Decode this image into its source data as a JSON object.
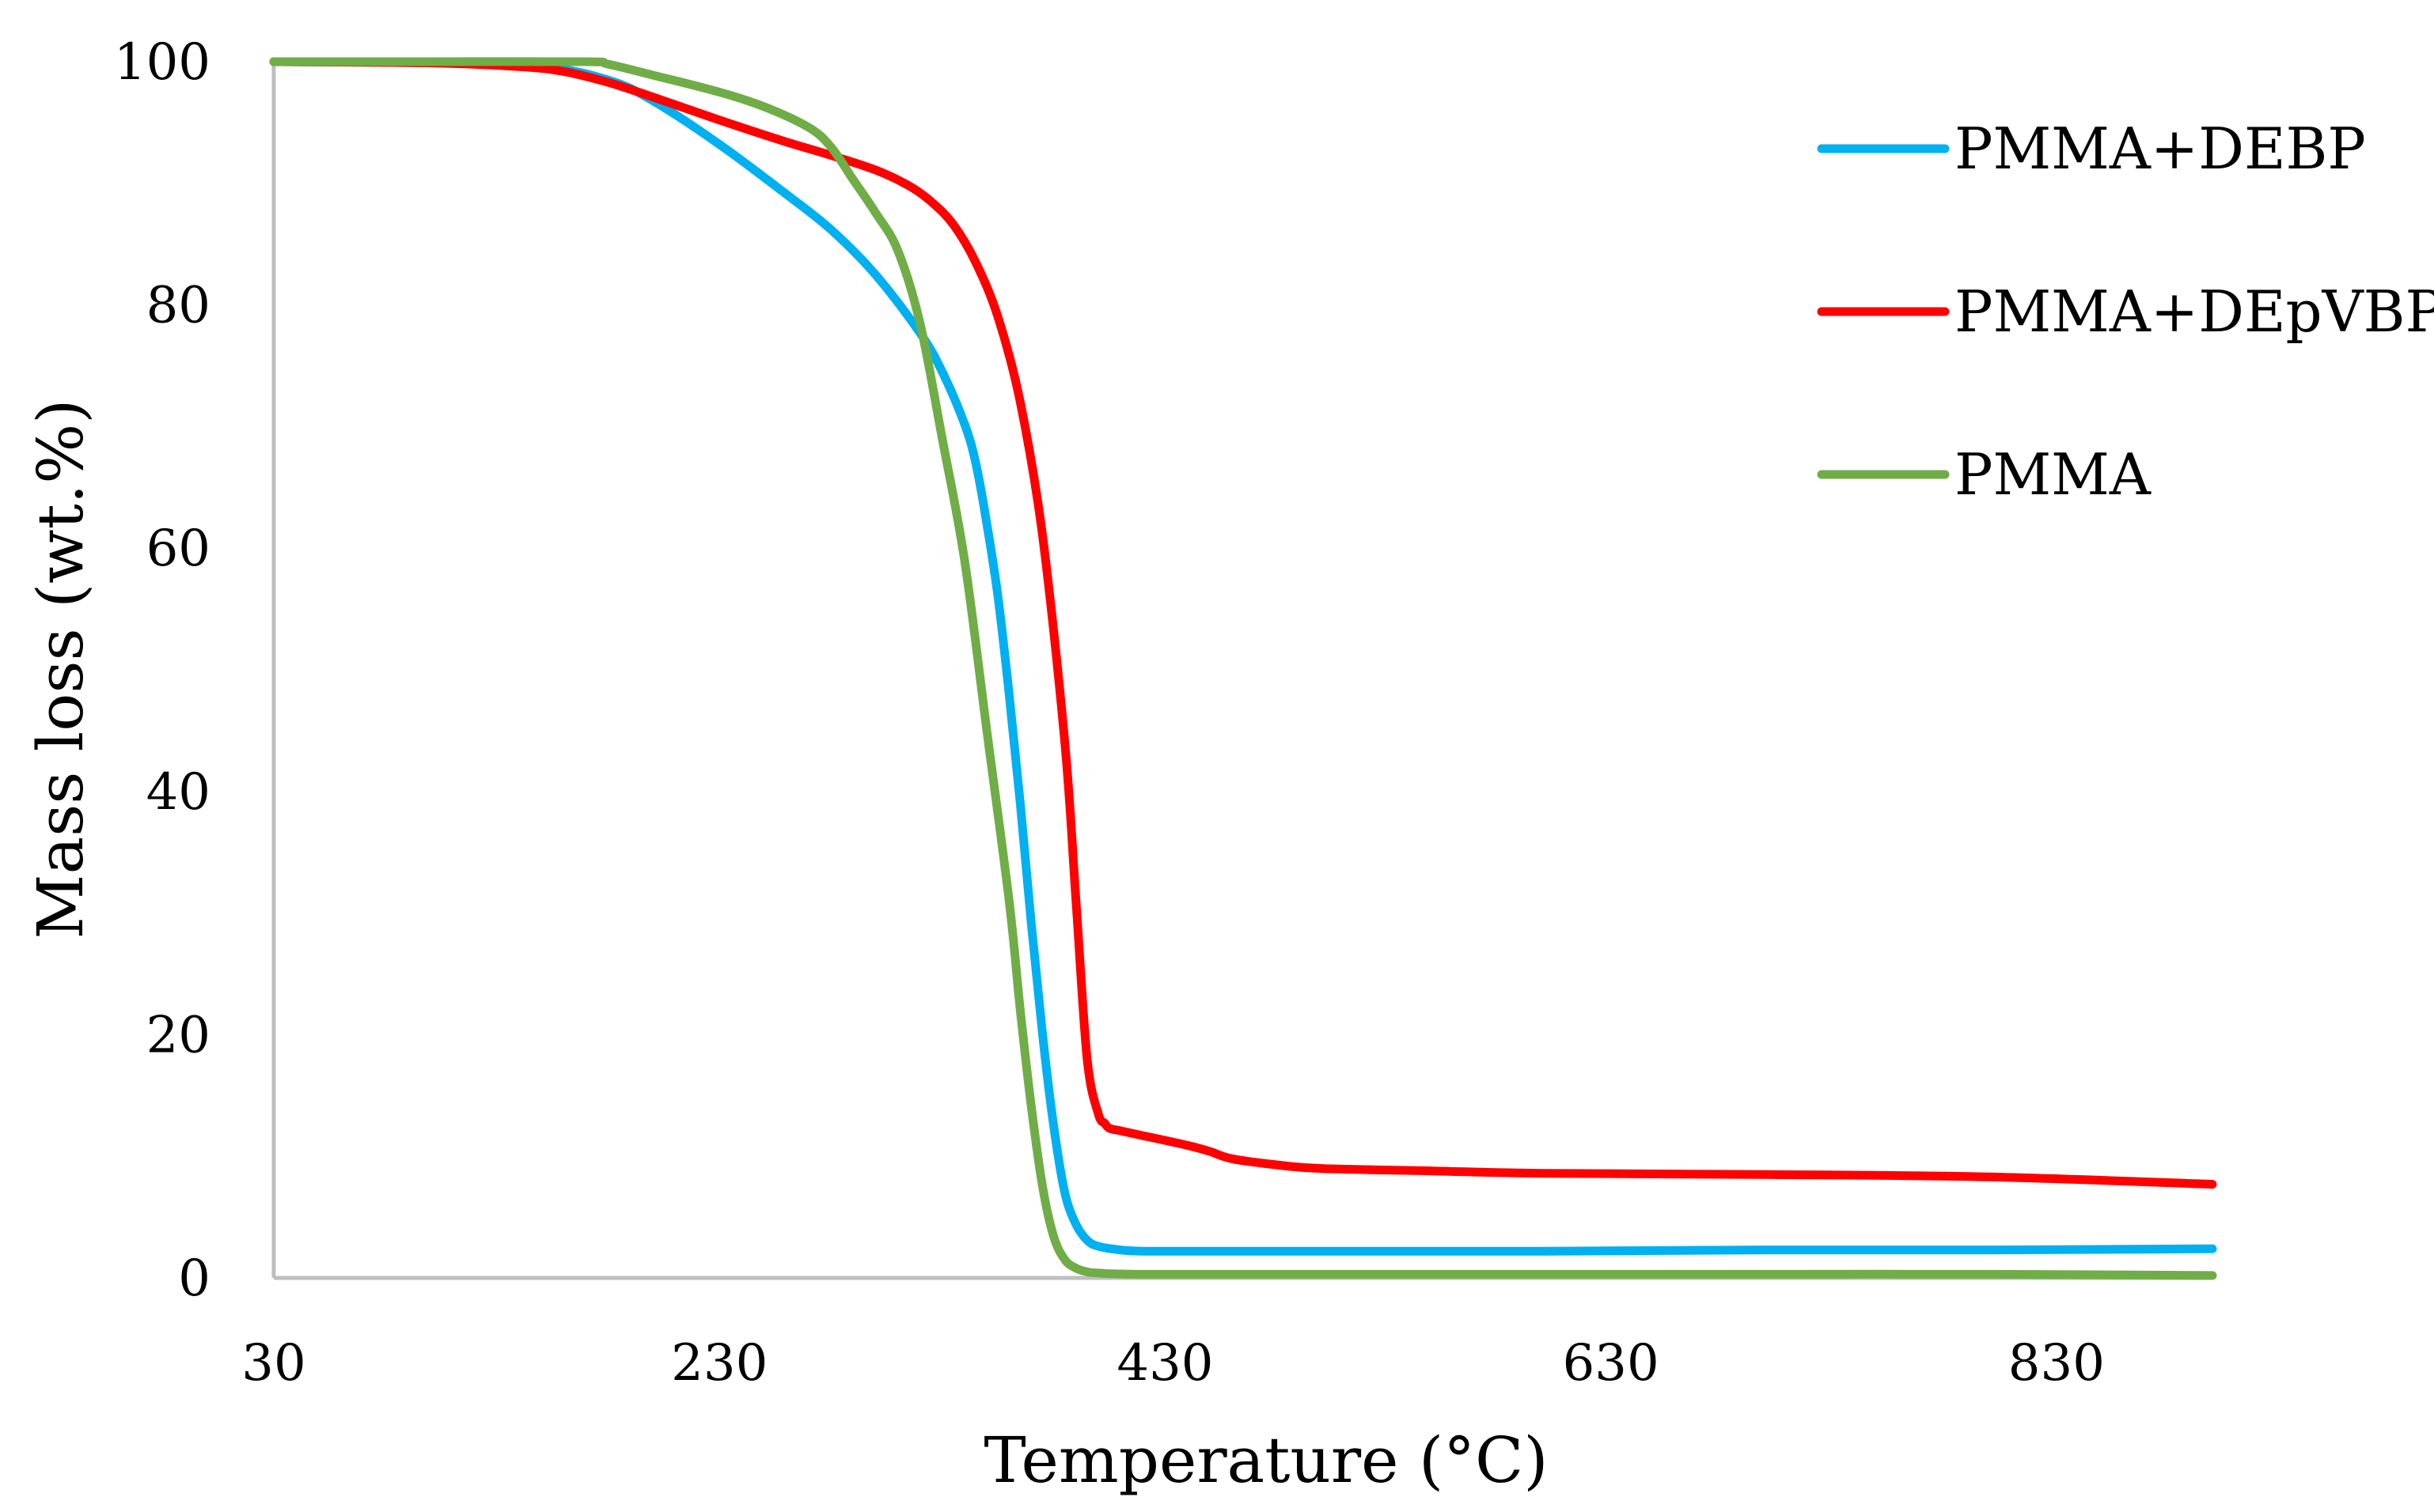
{
  "chart_data": {
    "type": "line",
    "title": "",
    "xlabel": "Temperature (°C)",
    "ylabel": "Mass loss (wt.%)",
    "xlim": [
      30,
      900
    ],
    "ylim": [
      0,
      100
    ],
    "xticks": [
      30,
      230,
      430,
      630,
      830
    ],
    "xtick_labels": [
      "30",
      "230",
      "430",
      "630",
      "830"
    ],
    "yticks": [
      0,
      20,
      40,
      60,
      80,
      100
    ],
    "ytick_labels": [
      "0",
      "20",
      "40",
      "60",
      "80",
      "100"
    ],
    "grid": false,
    "legend_position": "top-right",
    "series": [
      {
        "name": "PMMA+DEBP",
        "color": "#00b0f0",
        "x": [
          30,
          100,
          150,
          180,
          200,
          230,
          260,
          280,
          300,
          320,
          330,
          340,
          345,
          350,
          355,
          360,
          365,
          370,
          375,
          380,
          385,
          390,
          395,
          400,
          410,
          420,
          430,
          500,
          600,
          700,
          800,
          900
        ],
        "y": [
          100,
          99.9,
          99.6,
          98.5,
          96.8,
          93.2,
          89.1,
          86.2,
          82.5,
          77.7,
          74.5,
          70.2,
          67.0,
          62.0,
          56.0,
          48.0,
          39.0,
          29.0,
          20.0,
          12.5,
          7.0,
          4.4,
          3.1,
          2.6,
          2.3,
          2.2,
          2.2,
          2.2,
          2.2,
          2.3,
          2.3,
          2.4
        ]
      },
      {
        "name": "PMMA+DEpVBP",
        "color": "#ff0000",
        "x": [
          30,
          100,
          140,
          160,
          180,
          200,
          230,
          260,
          280,
          300,
          315,
          325,
          335,
          345,
          355,
          365,
          375,
          385,
          390,
          395,
          400,
          403,
          405,
          410,
          420,
          440,
          450,
          460,
          480,
          500,
          550,
          600,
          700,
          800,
          900
        ],
        "y": [
          100,
          99.9,
          99.6,
          99.2,
          98.3,
          97.1,
          95.2,
          93.4,
          92.3,
          91.1,
          89.8,
          88.5,
          86.6,
          83.5,
          79.0,
          72.0,
          61.0,
          44.0,
          31.0,
          18.0,
          13.5,
          12.7,
          12.3,
          12.1,
          11.7,
          10.9,
          10.4,
          9.8,
          9.3,
          9.0,
          8.8,
          8.6,
          8.5,
          8.3,
          7.7
        ]
      },
      {
        "name": "PMMA",
        "color": "#70ad47",
        "x": [
          30,
          100,
          170,
          180,
          200,
          230,
          250,
          270,
          280,
          290,
          300,
          310,
          320,
          330,
          340,
          350,
          360,
          365,
          370,
          375,
          380,
          385,
          390,
          395,
          400,
          420,
          500,
          600,
          700,
          800,
          900
        ],
        "y": [
          100,
          100,
          100,
          99.8,
          98.9,
          97.5,
          96.3,
          94.6,
          93.0,
          90.3,
          87.6,
          84.5,
          78.5,
          69.0,
          59.0,
          45.0,
          31.0,
          22.0,
          14.0,
          7.5,
          3.4,
          1.5,
          0.8,
          0.5,
          0.4,
          0.3,
          0.3,
          0.3,
          0.3,
          0.3,
          0.2
        ]
      }
    ]
  }
}
